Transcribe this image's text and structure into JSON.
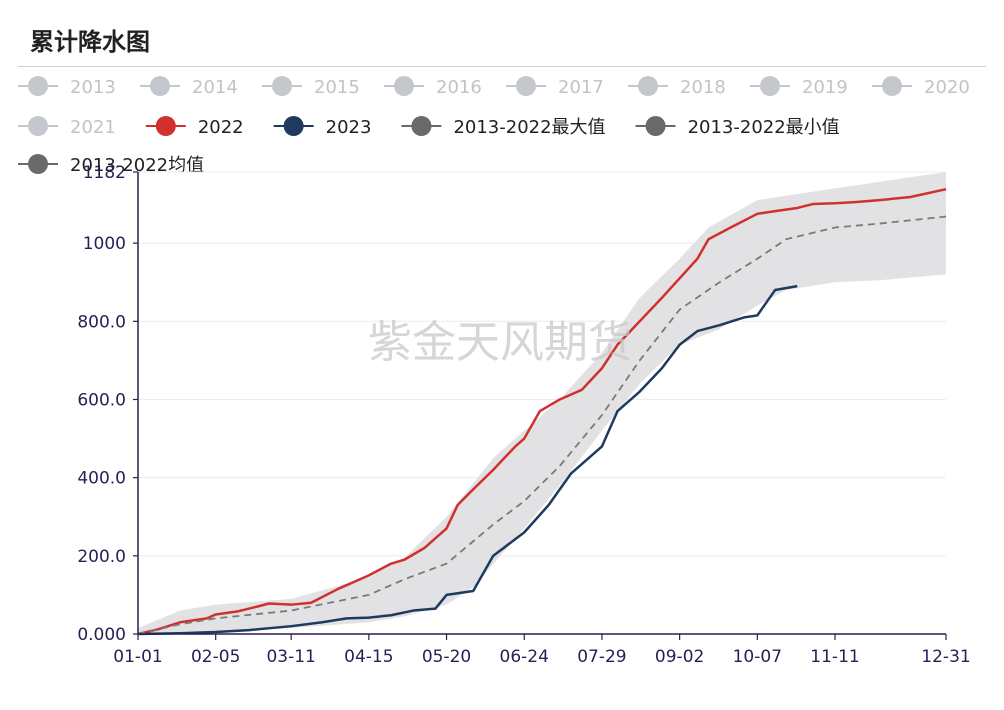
{
  "title": "累计降水图",
  "watermark": "紫金天风期货",
  "colors": {
    "red": "#d0312d",
    "navy": "#1f3a5f",
    "band": "#e2e2e4",
    "avg": "#7a7a7a",
    "inactive": "#c4c7cc",
    "axis": "#2a1e55"
  },
  "legend": [
    {
      "label": "2013",
      "active": false
    },
    {
      "label": "2014",
      "active": false
    },
    {
      "label": "2015",
      "active": false
    },
    {
      "label": "2016",
      "active": false
    },
    {
      "label": "2017",
      "active": false
    },
    {
      "label": "2018",
      "active": false
    },
    {
      "label": "2019",
      "active": false
    },
    {
      "label": "2020",
      "active": false
    },
    {
      "label": "2021",
      "active": false
    },
    {
      "label": "2022",
      "active": true,
      "color": "#d0312d"
    },
    {
      "label": "2023",
      "active": true,
      "color": "#1f3a5f"
    },
    {
      "label": "2013-2022最大值",
      "active": true,
      "color": "#6a6a6a"
    },
    {
      "label": "2013-2022最小值",
      "active": true,
      "color": "#6a6a6a"
    },
    {
      "label": "2013-2022均值",
      "active": true,
      "color": "#6a6a6a"
    }
  ],
  "chart_data": {
    "type": "line",
    "title": "累计降水图",
    "x_ticks": [
      "01-01",
      "02-05",
      "03-11",
      "04-15",
      "05-20",
      "06-24",
      "07-29",
      "09-02",
      "10-07",
      "11-11",
      "12-31"
    ],
    "y_ticks": [
      "0.000",
      "200.0",
      "400.0",
      "600.0",
      "800.0",
      "1000",
      "1182"
    ],
    "ylim": [
      0,
      1182
    ],
    "grid": true,
    "series": [
      {
        "name": "2022",
        "x": [
          "01-01",
          "01-10",
          "01-20",
          "02-01",
          "02-05",
          "02-15",
          "02-25",
          "03-01",
          "03-11",
          "03-20",
          "04-01",
          "04-15",
          "04-25",
          "05-01",
          "05-10",
          "05-20",
          "05-25",
          "06-01",
          "06-10",
          "06-20",
          "06-24",
          "07-01",
          "07-10",
          "07-20",
          "07-29",
          "08-05",
          "08-15",
          "08-25",
          "09-02",
          "09-10",
          "09-15",
          "09-25",
          "10-07",
          "10-15",
          "10-25",
          "11-01",
          "11-11",
          "11-20",
          "12-01",
          "12-15",
          "12-31"
        ],
        "values": [
          0,
          12,
          30,
          40,
          50,
          58,
          72,
          78,
          75,
          80,
          115,
          150,
          180,
          190,
          220,
          270,
          330,
          370,
          420,
          480,
          500,
          570,
          600,
          625,
          680,
          740,
          800,
          860,
          910,
          960,
          1010,
          1040,
          1075,
          1082,
          1090,
          1100,
          1102,
          1105,
          1110,
          1118,
          1138
        ]
      },
      {
        "name": "2023",
        "x": [
          "01-01",
          "01-20",
          "02-05",
          "02-20",
          "03-11",
          "03-25",
          "04-05",
          "04-15",
          "04-25",
          "05-05",
          "05-15",
          "05-20",
          "06-01",
          "06-10",
          "06-24",
          "07-05",
          "07-15",
          "07-29",
          "08-05",
          "08-15",
          "08-25",
          "09-02",
          "09-10",
          "09-20",
          "10-01",
          "10-07",
          "10-15",
          "10-25"
        ],
        "values": [
          0,
          2,
          5,
          10,
          20,
          30,
          40,
          42,
          48,
          60,
          65,
          100,
          110,
          200,
          260,
          330,
          410,
          480,
          570,
          620,
          680,
          740,
          775,
          790,
          810,
          815,
          880,
          890
        ]
      },
      {
        "name": "2013-2022最大值",
        "x": [
          "01-01",
          "01-20",
          "02-05",
          "03-11",
          "04-15",
          "05-01",
          "05-20",
          "06-10",
          "06-24",
          "07-10",
          "07-29",
          "08-15",
          "09-02",
          "09-15",
          "10-07",
          "11-11",
          "12-31"
        ],
        "values": [
          15,
          60,
          75,
          90,
          145,
          195,
          300,
          450,
          520,
          600,
          720,
          860,
          960,
          1040,
          1110,
          1140,
          1182
        ]
      },
      {
        "name": "2013-2022最小值",
        "x": [
          "01-01",
          "02-05",
          "03-11",
          "04-15",
          "05-01",
          "05-20",
          "06-01",
          "06-24",
          "07-10",
          "07-29",
          "08-15",
          "09-02",
          "09-20",
          "10-07",
          "10-20",
          "11-11",
          "12-01",
          "12-31"
        ],
        "values": [
          0,
          5,
          15,
          30,
          45,
          75,
          120,
          270,
          380,
          520,
          640,
          740,
          780,
          840,
          880,
          900,
          905,
          920
        ]
      },
      {
        "name": "2013-2022均值",
        "x": [
          "01-01",
          "01-20",
          "02-05",
          "03-11",
          "04-15",
          "05-01",
          "05-20",
          "06-10",
          "06-24",
          "07-10",
          "07-29",
          "08-15",
          "09-02",
          "09-20",
          "10-07",
          "10-20",
          "11-11",
          "12-01",
          "12-31"
        ],
        "values": [
          0,
          25,
          40,
          60,
          100,
          140,
          180,
          280,
          340,
          430,
          560,
          700,
          830,
          900,
          960,
          1010,
          1040,
          1050,
          1068
        ]
      }
    ]
  }
}
